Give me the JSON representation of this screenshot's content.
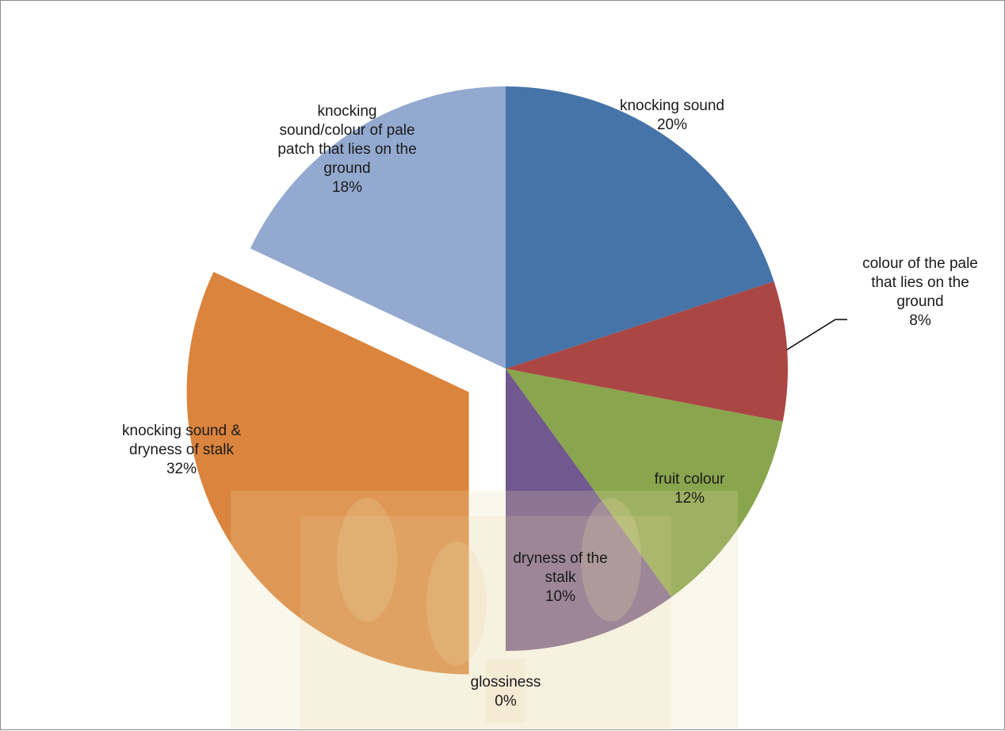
{
  "chart_data": {
    "type": "pie",
    "start_angle_deg": 0,
    "direction": "clockwise",
    "exploded_slice": "knocking sound & dryness of stalk",
    "slices": [
      {
        "label_lines": [
          "knocking sound"
        ],
        "percent_label": "20%",
        "value": 20,
        "color": "#4674A9"
      },
      {
        "label_lines": [
          "colour of the pale",
          "that lies on the",
          "ground"
        ],
        "percent_label": "8%",
        "value": 8,
        "color": "#AA4744"
      },
      {
        "label_lines": [
          "fruit colour"
        ],
        "percent_label": "12%",
        "value": 12,
        "color": "#89A54E"
      },
      {
        "label_lines": [
          "dryness of the",
          "stalk"
        ],
        "percent_label": "10%",
        "value": 10,
        "color": "#71588F"
      },
      {
        "label_lines": [
          "glossiness"
        ],
        "percent_label": "0%",
        "value": 0,
        "color": "#4198AF"
      },
      {
        "label_lines": [
          "knocking sound &",
          "dryness of stalk"
        ],
        "percent_label": "32%",
        "value": 32,
        "color": "#DB843D"
      },
      {
        "label_lines": [
          "knocking",
          "sound/colour of pale",
          "patch that lies on the",
          "ground"
        ],
        "percent_label": "18%",
        "value": 18,
        "color": "#93A9CF"
      }
    ]
  },
  "watermark": {
    "color": "#e9d9a8"
  }
}
